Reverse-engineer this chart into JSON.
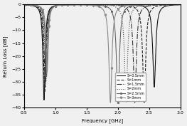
{
  "title": "",
  "xlabel": "Frequency [GHz]",
  "ylabel": "Return Loss [dB]",
  "xlim": [
    0.5,
    3.0
  ],
  "ylim": [
    -40,
    0
  ],
  "yticks": [
    0,
    -5,
    -10,
    -15,
    -20,
    -25,
    -30,
    -35,
    -40
  ],
  "xticks": [
    0.5,
    1.0,
    1.5,
    2.0,
    2.5,
    3.0
  ],
  "series": [
    {
      "label": "S=0.5mm",
      "ls": "-",
      "color": "#111111",
      "marker": null,
      "ms": 2.0,
      "lw": 0.8,
      "dip1_f": 0.82,
      "dip1_v": -37,
      "dip1_bw": 0.042,
      "dip2_f": 2.58,
      "dip2_v": -32,
      "dip2_bw": 0.055
    },
    {
      "label": "S=1mm",
      "ls": "--",
      "color": "#222222",
      "marker": null,
      "ms": 2.0,
      "lw": 0.8,
      "dip1_f": 0.83,
      "dip1_v": -34,
      "dip1_bw": 0.042,
      "dip2_f": 2.42,
      "dip2_v": -38,
      "dip2_bw": 0.055
    },
    {
      "label": "S=1.5mm",
      "ls": "-.",
      "color": "#333333",
      "marker": null,
      "ms": 2.0,
      "lw": 0.8,
      "dip1_f": 0.84,
      "dip1_v": -32,
      "dip1_bw": 0.042,
      "dip2_f": 2.27,
      "dip2_v": -38,
      "dip2_bw": 0.055
    },
    {
      "label": "S=2mm",
      "ls": ":",
      "color": "#444444",
      "marker": null,
      "ms": 2.0,
      "lw": 0.8,
      "dip1_f": 0.85,
      "dip1_v": -30,
      "dip1_bw": 0.042,
      "dip2_f": 2.13,
      "dip2_v": -38,
      "dip2_bw": 0.055
    },
    {
      "label": "S=2.5mm",
      "ls": "-",
      "color": "#666666",
      "marker": "*",
      "ms": 1.8,
      "lw": 0.8,
      "dip1_f": 0.86,
      "dip1_v": -28,
      "dip1_bw": 0.042,
      "dip2_f": 2.0,
      "dip2_v": -38,
      "dip2_bw": 0.055
    },
    {
      "label": "S=3mm",
      "ls": "-",
      "color": "#888888",
      "marker": "v",
      "ms": 1.8,
      "lw": 0.8,
      "dip1_f": 0.87,
      "dip1_v": -26,
      "dip1_bw": 0.042,
      "dip2_f": 1.88,
      "dip2_v": -38,
      "dip2_bw": 0.055
    }
  ],
  "background_color": "#f0f0f0"
}
